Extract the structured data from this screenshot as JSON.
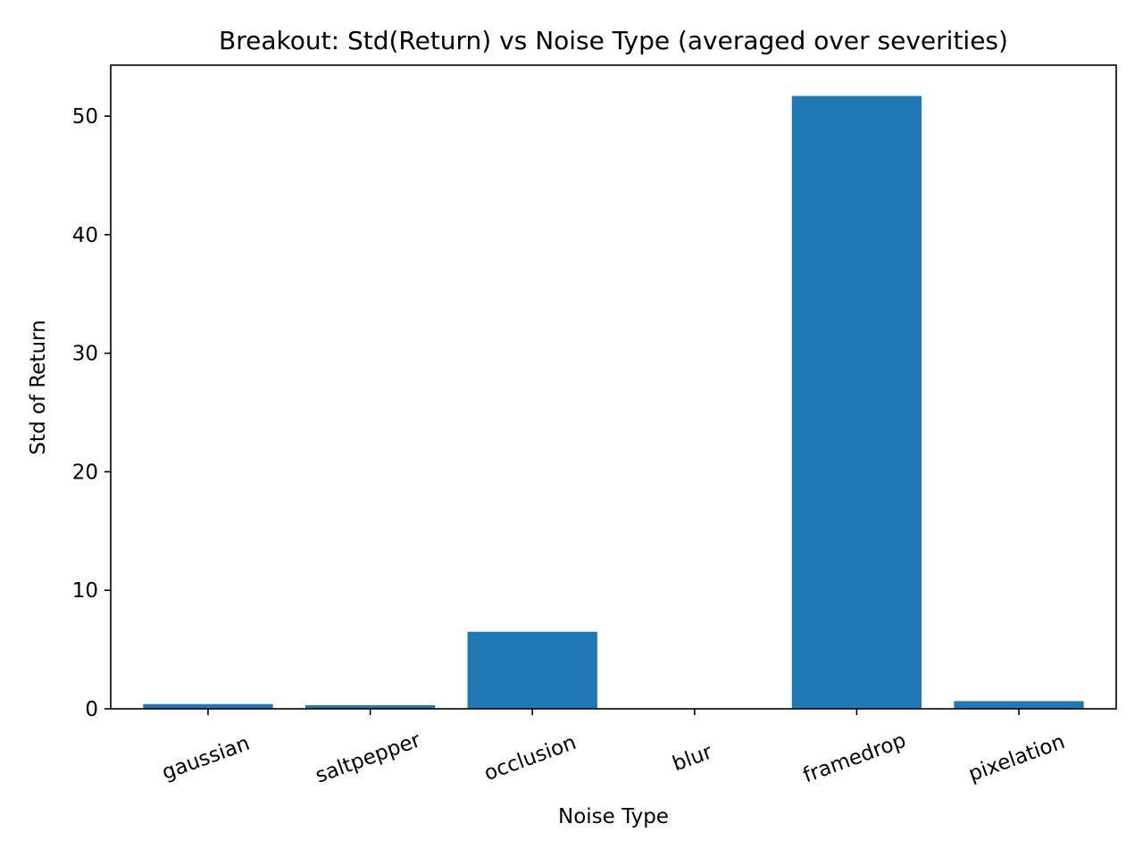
{
  "chart_data": {
    "type": "bar",
    "title": "Breakout: Std(Return) vs Noise Type (averaged over severities)",
    "xlabel": "Noise Type",
    "ylabel": "Std of Return",
    "categories": [
      "gaussian",
      "saltpepper",
      "occlusion",
      "blur",
      "framedrop",
      "pixelation"
    ],
    "values": [
      0.4,
      0.3,
      6.5,
      0.0,
      51.7,
      0.65
    ],
    "ylim": [
      0,
      54.3
    ],
    "yticks": [
      0,
      10,
      20,
      30,
      40,
      50
    ],
    "bar_color": "#1f77b4",
    "grid": false,
    "legend": "none"
  }
}
